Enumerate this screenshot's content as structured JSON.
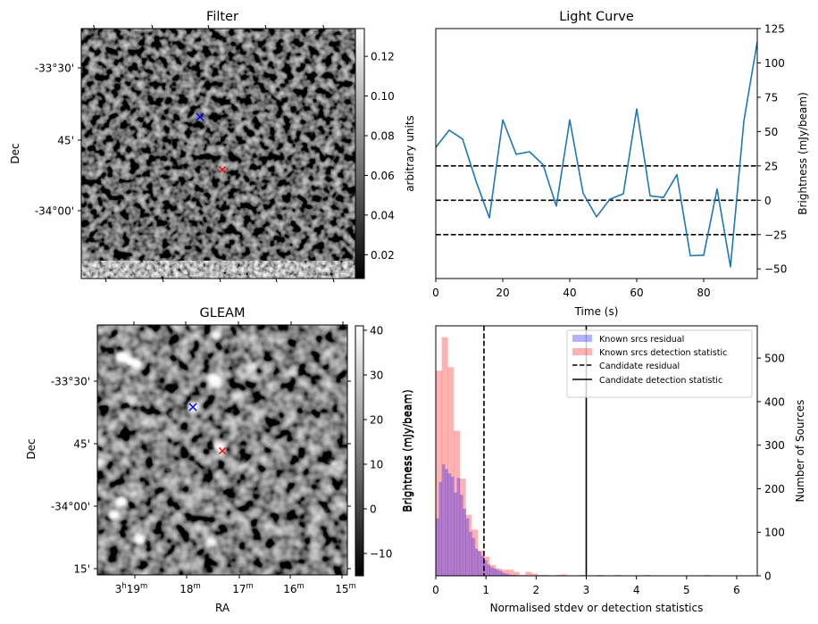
{
  "figure": {
    "panels": [
      "filter",
      "light_curve",
      "gleam",
      "histogram"
    ]
  },
  "chart_data": [
    {
      "id": "filter",
      "type": "heatmap",
      "title": "Filter",
      "xlabel": "",
      "ylabel": "Dec",
      "yticks": [
        "-33°30'",
        "45'",
        "-34°00'"
      ],
      "colormap": "gray",
      "colorbar": {
        "label": "arbitrary units",
        "range": [
          0.008,
          0.134
        ],
        "ticks": [
          "0.02",
          "0.04",
          "0.06",
          "0.08",
          "0.10",
          "0.12"
        ]
      },
      "markers": [
        {
          "name": "reference-source",
          "symbol": "x",
          "color": "#0000ff"
        },
        {
          "name": "candidate",
          "symbol": "x",
          "color": "#ff0000"
        }
      ],
      "notes": "Noise-like filtered image with a bright band along the bottom edge"
    },
    {
      "id": "light_curve",
      "type": "line",
      "title": "Light Curve",
      "xlabel": "Time (s)",
      "ylabel": "Brightness (mJy/beam)",
      "ylabel_side": "right",
      "xlim": [
        0,
        96
      ],
      "ylim": [
        -57,
        125
      ],
      "xticks": [
        0,
        20,
        40,
        60,
        80
      ],
      "yticks": [
        -50,
        -25,
        0,
        25,
        50,
        75,
        100,
        125
      ],
      "x": [
        0,
        4,
        8,
        12,
        16,
        20,
        24,
        28,
        32,
        36,
        40,
        44,
        48,
        52,
        56,
        60,
        64,
        68,
        72,
        76,
        80,
        84,
        88,
        92,
        96
      ],
      "series": [
        {
          "name": "light curve",
          "color": "#1f77b4",
          "values": [
            38.5,
            51,
            44.5,
            14,
            -12.8,
            58.5,
            33.5,
            35.3,
            26,
            -4.3,
            58.5,
            5,
            -12,
            0.8,
            4.7,
            66.5,
            3.2,
            2,
            18.6,
            -40.4,
            -40,
            8.2,
            -48.5,
            57.7,
            115.5
          ]
        }
      ],
      "hlines": [
        {
          "y": 25,
          "style": "dashed",
          "color": "#000000"
        },
        {
          "y": 0,
          "style": "dashed",
          "color": "#000000"
        },
        {
          "y": -25,
          "style": "dashed",
          "color": "#000000"
        }
      ]
    },
    {
      "id": "gleam",
      "type": "heatmap",
      "title": "GLEAM",
      "xlabel": "RA",
      "ylabel": "Dec",
      "xticks": [
        {
          "main": "3",
          "sup1": "h",
          "mid": "19",
          "sup2": "m"
        },
        {
          "main": "",
          "sup1": "",
          "mid": "18",
          "sup2": "m"
        },
        {
          "main": "",
          "sup1": "",
          "mid": "17",
          "sup2": "m"
        },
        {
          "main": "",
          "sup1": "",
          "mid": "16",
          "sup2": "m"
        },
        {
          "main": "",
          "sup1": "",
          "mid": "15",
          "sup2": "m"
        }
      ],
      "yticks": [
        "-33°30'",
        "45'",
        "-34°00'",
        "15'"
      ],
      "colormap": "gray",
      "colorbar": {
        "label": "Brightness (mJy/beam)",
        "range": [
          -15,
          41
        ],
        "ticks": [
          "−10",
          "0",
          "10",
          "20",
          "30",
          "40"
        ]
      },
      "markers": [
        {
          "name": "reference-source",
          "symbol": "x",
          "color": "#0000ff"
        },
        {
          "name": "candidate",
          "symbol": "x",
          "color": "#ff0000"
        }
      ]
    },
    {
      "id": "histogram",
      "type": "bar",
      "title": "",
      "xlabel": "Normalised stdev or detection statistics",
      "ylabel_left": "Brightness (mJy/beam)",
      "ylabel_right": "Number of Sources",
      "xlim": [
        0,
        6.41
      ],
      "ylim": [
        0,
        574
      ],
      "xticks": [
        0,
        1,
        2,
        3,
        4,
        5,
        6
      ],
      "yticks": [
        0,
        100,
        200,
        300,
        400,
        500
      ],
      "series": [
        {
          "name": "Known srcs residual",
          "color": "#0000ff",
          "alpha": 0.3,
          "bin_width": 0.06,
          "bin_start": 0.0,
          "values": [
            132,
            215,
            256,
            245,
            235,
            228,
            191,
            225,
            186,
            154,
            132,
            101,
            87,
            62,
            56,
            46,
            36,
            26,
            20,
            17,
            14,
            11,
            7,
            5,
            3,
            2,
            2,
            1,
            1,
            1
          ]
        },
        {
          "name": "Known srcs detection statistic",
          "color": "#ff0000",
          "alpha": 0.3,
          "bin_width": 0.119,
          "bin_start": 0.0,
          "values": [
            471,
            548,
            479,
            333,
            223,
            140,
            106,
            58,
            44,
            25,
            17,
            14,
            14,
            9,
            2,
            9,
            5,
            2,
            2,
            0,
            2,
            3,
            0,
            0,
            2,
            0,
            0,
            2,
            0,
            0,
            2,
            0,
            0,
            0,
            0,
            2,
            0,
            0,
            0,
            0,
            0,
            0,
            0,
            0,
            0,
            2,
            0,
            0,
            0,
            0,
            0,
            0,
            0
          ]
        }
      ],
      "vlines": [
        {
          "name": "Candidate residual",
          "x": 0.96,
          "style": "dashed",
          "color": "#000000"
        },
        {
          "name": "Candidate detection statistic",
          "x": 3.0,
          "style": "solid",
          "color": "#000000"
        }
      ],
      "legend": {
        "position": "top-right",
        "entries": [
          {
            "label": "Known srcs residual",
            "kind": "patch",
            "color": "#0000ff"
          },
          {
            "label": "Known srcs detection statistic",
            "kind": "patch",
            "color": "#ff0000"
          },
          {
            "label": "Candidate residual",
            "kind": "dashed"
          },
          {
            "label": "Candidate detection statistic",
            "kind": "solid"
          }
        ]
      }
    }
  ]
}
